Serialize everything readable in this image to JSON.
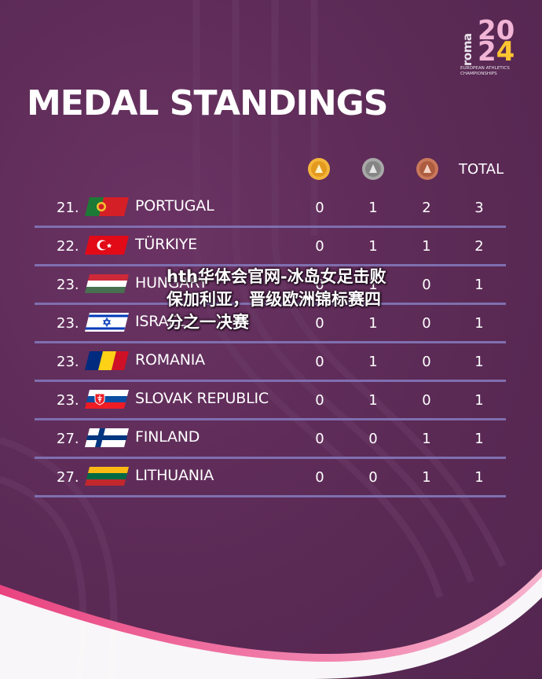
{
  "logo": {
    "word": "roma",
    "year_a": "2",
    "year_b": "0",
    "year_c": "2",
    "year_d": "4",
    "sub_line1": "EUROPEAN ATHLETICS",
    "sub_line2": "CHAMPIONSHIPS"
  },
  "title": "MEDAL STANDINGS",
  "columns": {
    "gold_icon": "gold-medal-icon",
    "silver_icon": "silver-medal-icon",
    "bronze_icon": "bronze-medal-icon",
    "total_label": "TOTAL"
  },
  "colors": {
    "background": "#5b2a55",
    "row_line": "#7f6fb0",
    "gold": "#f4b63a",
    "silver": "#9a9a9a",
    "bronze": "#c9785b"
  },
  "rows": [
    {
      "rank": "21.",
      "country": "PORTUGAL",
      "flag": "portugal-flag-icon",
      "gold": "0",
      "silver": "1",
      "bronze": "2",
      "total": "3"
    },
    {
      "rank": "22.",
      "country": "TÜRKIYE",
      "flag": "turkiye-flag-icon",
      "gold": "0",
      "silver": "1",
      "bronze": "1",
      "total": "2"
    },
    {
      "rank": "23.",
      "country": "HUNGARY",
      "flag": "hungary-flag-icon",
      "gold": "0",
      "silver": "1",
      "bronze": "0",
      "total": "1"
    },
    {
      "rank": "23.",
      "country": "ISRAEL",
      "flag": "israel-flag-icon",
      "gold": "0",
      "silver": "1",
      "bronze": "0",
      "total": "1"
    },
    {
      "rank": "23.",
      "country": "ROMANIA",
      "flag": "romania-flag-icon",
      "gold": "0",
      "silver": "1",
      "bronze": "0",
      "total": "1"
    },
    {
      "rank": "23.",
      "country": "SLOVAK REPUBLIC",
      "flag": "slovakia-flag-icon",
      "gold": "0",
      "silver": "1",
      "bronze": "0",
      "total": "1"
    },
    {
      "rank": "27.",
      "country": "FINLAND",
      "flag": "finland-flag-icon",
      "gold": "0",
      "silver": "0",
      "bronze": "1",
      "total": "1"
    },
    {
      "rank": "27.",
      "country": "LITHUANIA",
      "flag": "lithuania-flag-icon",
      "gold": "0",
      "silver": "0",
      "bronze": "1",
      "total": "1"
    }
  ],
  "overlay_text": "hth华体会官网-冰岛女足击败保加利亚，晋级欧洲锦标赛四分之一决赛"
}
